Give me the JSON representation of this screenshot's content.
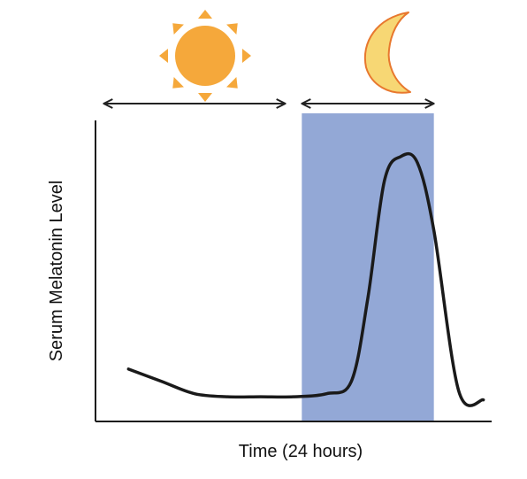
{
  "chart_data": {
    "type": "line",
    "title": "",
    "xlabel": "Time (24 hours)",
    "ylabel": "Serum Melatonin Level",
    "xlim": [
      0,
      24
    ],
    "ylim": [
      0,
      100
    ],
    "grid": false,
    "series": [
      {
        "x": [
          2,
          4,
          6,
          8,
          10,
          12,
          14,
          15.5,
          16.5,
          17.5,
          18.5,
          19.5,
          20.5,
          22,
          23.5
        ],
        "y": [
          17,
          13,
          9,
          8,
          8,
          8,
          9,
          13,
          40,
          78,
          86,
          84,
          62,
          10,
          7
        ]
      }
    ],
    "annotations": [
      {
        "label": "day",
        "icon": "sun-icon",
        "x_start": 0.5,
        "x_end": 11.5
      },
      {
        "label": "night",
        "icon": "moon-icon",
        "x_start": 12.5,
        "x_end": 20.5
      }
    ],
    "shaded_regions": [
      {
        "x_start": 12.5,
        "x_end": 20.5,
        "color": "#93a8d6"
      }
    ]
  },
  "colors": {
    "night_shade": "#93a8d6",
    "curve": "#1a1a1a",
    "axis": "#1a1a1a",
    "sun": "#f5a83b",
    "moon_fill": "#f7d774",
    "moon_stroke": "#e8782e"
  }
}
